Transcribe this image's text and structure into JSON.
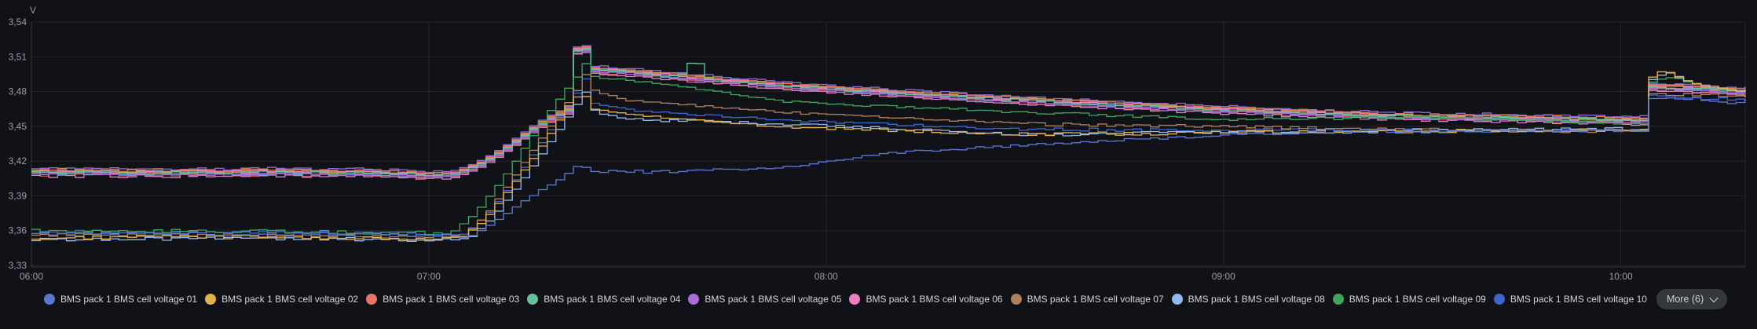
{
  "panel": {
    "legend": {
      "more_label": "More (6)"
    }
  },
  "chart_data": {
    "type": "line",
    "title": "",
    "unit": "V",
    "grid": true,
    "legend_position": "bottom",
    "x_axis": {
      "range_hours": [
        6.0,
        10.313
      ],
      "ticks": [
        {
          "label": "06:00",
          "t": 6.0
        },
        {
          "label": "07:00",
          "t": 7.0
        },
        {
          "label": "08:00",
          "t": 8.0
        },
        {
          "label": "09:00",
          "t": 9.0
        },
        {
          "label": "10:00",
          "t": 10.0
        }
      ]
    },
    "y_axis": {
      "range_volts": [
        3.33,
        3.54
      ],
      "ticks": [
        {
          "label": "3,33",
          "value": 3.33
        },
        {
          "label": "3,36",
          "value": 3.36
        },
        {
          "label": "3,39",
          "value": 3.39
        },
        {
          "label": "3,42",
          "value": 3.42
        },
        {
          "label": "3,45",
          "value": 3.45
        },
        {
          "label": "3,48",
          "value": 3.48
        },
        {
          "label": "3,51",
          "value": 3.51
        },
        {
          "label": "3,54",
          "value": 3.54
        }
      ]
    },
    "shapes": {
      "clusterA": [
        [
          6.0,
          3.4105
        ],
        [
          6.3,
          3.41
        ],
        [
          6.6,
          3.4105
        ],
        [
          6.9,
          3.4095
        ],
        [
          7.0,
          3.4075
        ],
        [
          7.06,
          3.409
        ],
        [
          7.12,
          3.417
        ],
        [
          7.17,
          3.427
        ],
        [
          7.22,
          3.439
        ],
        [
          7.26,
          3.449
        ],
        [
          7.295,
          3.456
        ],
        [
          7.325,
          3.461
        ],
        [
          7.345,
          3.464
        ],
        [
          7.352,
          3.515
        ],
        [
          7.393,
          3.517
        ],
        [
          7.402,
          3.499
        ],
        [
          7.5,
          3.4965
        ],
        [
          7.7,
          3.4905
        ],
        [
          7.9,
          3.4845
        ],
        [
          8.2,
          3.478
        ],
        [
          8.5,
          3.472
        ],
        [
          9.0,
          3.464
        ],
        [
          9.5,
          3.458
        ],
        [
          9.9,
          3.456
        ],
        [
          10.06,
          3.455
        ],
        [
          10.068,
          3.484
        ],
        [
          10.2,
          3.482
        ],
        [
          10.313,
          3.4795
        ]
      ]
    },
    "series": [
      {
        "label": "BMS pack 1 BMS cell voltage 01",
        "color": "#5a77ce",
        "in_legend": true,
        "points": [
          [
            6.0,
            3.357
          ],
          [
            6.4,
            3.3575
          ],
          [
            6.8,
            3.3565
          ],
          [
            7.1,
            3.3555
          ],
          [
            7.16,
            3.368
          ],
          [
            7.22,
            3.383
          ],
          [
            7.28,
            3.396
          ],
          [
            7.33,
            3.406
          ],
          [
            7.37,
            3.417
          ],
          [
            7.405,
            3.4115
          ],
          [
            7.6,
            3.4105
          ],
          [
            7.9,
            3.415
          ],
          [
            8.15,
            3.427
          ],
          [
            8.5,
            3.434
          ],
          [
            8.9,
            3.441
          ],
          [
            9.25,
            3.4455
          ],
          [
            9.6,
            3.446
          ],
          [
            10.06,
            3.447
          ],
          [
            10.068,
            3.474
          ],
          [
            10.18,
            3.474
          ],
          [
            10.26,
            3.47
          ],
          [
            10.313,
            3.472
          ]
        ]
      },
      {
        "label": "BMS pack 1 BMS cell voltage 02",
        "color": "#e3b04e",
        "in_legend": true,
        "points": [
          [
            6.0,
            3.354
          ],
          [
            6.5,
            3.3545
          ],
          [
            7.07,
            3.353
          ],
          [
            7.13,
            3.368
          ],
          [
            7.2,
            3.398
          ],
          [
            7.26,
            3.425
          ],
          [
            7.31,
            3.45
          ],
          [
            7.35,
            3.472
          ],
          [
            7.38,
            3.479
          ],
          [
            7.405,
            3.465
          ],
          [
            7.5,
            3.46
          ],
          [
            7.9,
            3.449
          ],
          [
            8.5,
            3.443
          ],
          [
            9.2,
            3.445
          ],
          [
            10.06,
            3.447
          ],
          [
            10.068,
            3.492
          ],
          [
            10.1,
            3.499
          ],
          [
            10.145,
            3.4905
          ],
          [
            10.2,
            3.485
          ],
          [
            10.28,
            3.4815
          ],
          [
            10.313,
            3.481
          ]
        ]
      },
      {
        "label": "BMS pack 1 BMS cell voltage 03",
        "color": "#ea7369",
        "in_legend": true,
        "shape": "clusterA",
        "offset": 0.0012
      },
      {
        "label": "BMS pack 1 BMS cell voltage 04",
        "color": "#67c29c",
        "in_legend": true,
        "points": [
          [
            6.0,
            3.4105
          ],
          [
            6.3,
            3.41
          ],
          [
            6.6,
            3.4105
          ],
          [
            6.9,
            3.4095
          ],
          [
            7.0,
            3.4075
          ],
          [
            7.06,
            3.409
          ],
          [
            7.12,
            3.417
          ],
          [
            7.17,
            3.427
          ],
          [
            7.22,
            3.439
          ],
          [
            7.26,
            3.449
          ],
          [
            7.295,
            3.456
          ],
          [
            7.325,
            3.461
          ],
          [
            7.345,
            3.464
          ],
          [
            7.352,
            3.515
          ],
          [
            7.393,
            3.517
          ],
          [
            7.402,
            3.499
          ],
          [
            7.5,
            3.4965
          ],
          [
            7.6,
            3.4925
          ],
          [
            7.627,
            3.4925
          ],
          [
            7.631,
            3.504
          ],
          [
            7.672,
            3.504
          ],
          [
            7.676,
            3.4905
          ],
          [
            7.9,
            3.4845
          ],
          [
            8.2,
            3.478
          ],
          [
            8.5,
            3.472
          ],
          [
            9.0,
            3.464
          ],
          [
            9.5,
            3.458
          ],
          [
            9.9,
            3.456
          ],
          [
            10.06,
            3.455
          ],
          [
            10.068,
            3.484
          ],
          [
            10.2,
            3.482
          ],
          [
            10.313,
            3.4795
          ]
        ]
      },
      {
        "label": "BMS pack 1 BMS cell voltage 05",
        "color": "#ab6bd9",
        "in_legend": true,
        "shape": "clusterA",
        "offset": -0.0012
      },
      {
        "label": "BMS pack 1 BMS cell voltage 06",
        "color": "#ec7fbe",
        "in_legend": true,
        "shape": "clusterA",
        "offset": 0.0004
      },
      {
        "label": "BMS pack 1 BMS cell voltage 07",
        "color": "#ad7f5e",
        "in_legend": true,
        "points": [
          [
            6.0,
            3.356
          ],
          [
            6.6,
            3.3555
          ],
          [
            7.08,
            3.355
          ],
          [
            7.14,
            3.375
          ],
          [
            7.21,
            3.408
          ],
          [
            7.27,
            3.437
          ],
          [
            7.32,
            3.461
          ],
          [
            7.36,
            3.478
          ],
          [
            7.385,
            3.496
          ],
          [
            7.41,
            3.48
          ],
          [
            7.5,
            3.472
          ],
          [
            7.9,
            3.462
          ],
          [
            8.5,
            3.452
          ],
          [
            9.0,
            3.45
          ],
          [
            9.5,
            3.447
          ],
          [
            9.9,
            3.446
          ],
          [
            10.06,
            3.447
          ],
          [
            10.068,
            3.478
          ],
          [
            10.313,
            3.476
          ]
        ]
      },
      {
        "label": "BMS pack 1 BMS cell voltage 08",
        "color": "#8fb9f0",
        "in_legend": true,
        "points": [
          [
            6.0,
            3.3525
          ],
          [
            6.5,
            3.353
          ],
          [
            7.09,
            3.352
          ],
          [
            7.15,
            3.37
          ],
          [
            7.22,
            3.4
          ],
          [
            7.28,
            3.428
          ],
          [
            7.33,
            3.452
          ],
          [
            7.37,
            3.472
          ],
          [
            7.39,
            3.482
          ],
          [
            7.41,
            3.462
          ],
          [
            7.5,
            3.456
          ],
          [
            7.9,
            3.452
          ],
          [
            8.5,
            3.4425
          ],
          [
            9.0,
            3.445
          ],
          [
            9.5,
            3.446
          ],
          [
            10.06,
            3.448
          ],
          [
            10.068,
            3.49
          ],
          [
            10.11,
            3.497
          ],
          [
            10.16,
            3.489
          ],
          [
            10.22,
            3.483
          ],
          [
            10.313,
            3.48
          ]
        ]
      },
      {
        "label": "BMS pack 1 BMS cell voltage 09",
        "color": "#3fa45b",
        "in_legend": true,
        "points": [
          [
            6.0,
            3.36
          ],
          [
            6.5,
            3.3595
          ],
          [
            7.05,
            3.358
          ],
          [
            7.11,
            3.375
          ],
          [
            7.18,
            3.405
          ],
          [
            7.24,
            3.435
          ],
          [
            7.29,
            3.46
          ],
          [
            7.33,
            3.478
          ],
          [
            7.36,
            3.49
          ],
          [
            7.385,
            3.505
          ],
          [
            7.41,
            3.492
          ],
          [
            7.55,
            3.488
          ],
          [
            7.9,
            3.471
          ],
          [
            8.5,
            3.462
          ],
          [
            9.0,
            3.456
          ],
          [
            9.5,
            3.458
          ],
          [
            9.8,
            3.455
          ],
          [
            10.06,
            3.452
          ],
          [
            10.068,
            3.488
          ],
          [
            10.12,
            3.493
          ],
          [
            10.18,
            3.486
          ],
          [
            10.26,
            3.481
          ],
          [
            10.313,
            3.479
          ]
        ]
      },
      {
        "label": "BMS pack 1 BMS cell voltage 10",
        "color": "#3c66c9",
        "in_legend": true,
        "points": [
          [
            6.0,
            3.359
          ],
          [
            6.5,
            3.3585
          ],
          [
            7.08,
            3.357
          ],
          [
            7.14,
            3.374
          ],
          [
            7.21,
            3.404
          ],
          [
            7.27,
            3.433
          ],
          [
            7.32,
            3.458
          ],
          [
            7.36,
            3.476
          ],
          [
            7.385,
            3.492
          ],
          [
            7.405,
            3.47
          ],
          [
            7.5,
            3.464
          ],
          [
            7.9,
            3.455
          ],
          [
            8.5,
            3.447
          ],
          [
            9.0,
            3.447
          ],
          [
            9.5,
            3.446
          ],
          [
            10.06,
            3.447
          ],
          [
            10.068,
            3.477
          ],
          [
            10.2,
            3.474
          ],
          [
            10.313,
            3.473
          ]
        ]
      },
      {
        "label": "",
        "color": "#e08a3c",
        "in_legend": false,
        "shape": "clusterA",
        "offset": 0.002
      },
      {
        "label": "",
        "color": "#c65550",
        "in_legend": false,
        "shape": "clusterA",
        "offset": -0.002
      },
      {
        "label": "",
        "color": "#8e6ad1",
        "in_legend": false,
        "shape": "clusterA",
        "offset": 0.003
      },
      {
        "label": "",
        "color": "#d583c4",
        "in_legend": false,
        "shape": "clusterA",
        "offset": -0.003
      },
      {
        "label": "",
        "color": "#b9a03f",
        "in_legend": false,
        "shape": "clusterA",
        "offset": 0.001
      },
      {
        "label": "",
        "color": "#6e8fd0",
        "in_legend": false,
        "shape": "clusterA",
        "offset": -0.001
      }
    ]
  }
}
